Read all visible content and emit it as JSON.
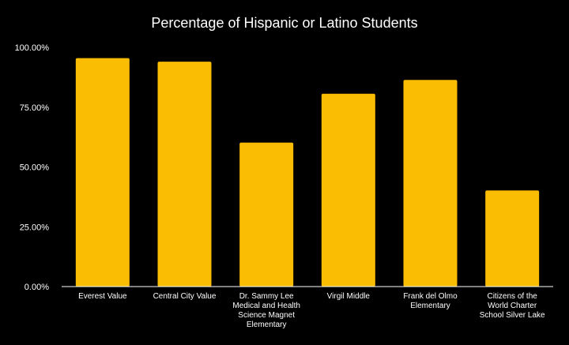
{
  "chart_data": {
    "type": "bar",
    "title": "Percentage of Hispanic or Latino Students",
    "xlabel": "",
    "ylabel": "",
    "ylim": [
      0,
      100
    ],
    "yticks": [
      0,
      25,
      50,
      75,
      100
    ],
    "ytick_labels": [
      "0.00%",
      "25.00%",
      "50.00%",
      "75.00%",
      "100.00%"
    ],
    "grid": false,
    "legend": "none",
    "categories": [
      "Everest Value",
      "Central City Value",
      "Dr. Sammy Lee Medical and Health Science Magnet Elementary",
      "Virgil Middle",
      "Frank del Olmo Elementary",
      "Citizens of the World Charter School Silver Lake"
    ],
    "category_label_lines": [
      [
        "Everest Value"
      ],
      [
        "Central City Value"
      ],
      [
        "Dr. Sammy Lee",
        "Medical and Health",
        "Science Magnet",
        "Elementary"
      ],
      [
        "Virgil Middle"
      ],
      [
        "Frank del Olmo",
        "Elementary"
      ],
      [
        "Citizens of the",
        "World Charter",
        "School Silver Lake"
      ]
    ],
    "series": [
      {
        "name": "Percentage of Hispanic or Latino Students",
        "values": [
          95.5,
          94,
          60.2,
          80.6,
          86.4,
          40.2
        ]
      }
    ],
    "colors": {
      "background": "#000000",
      "bar": "#fbbc04",
      "text": "#ffffff",
      "axis": "#ffffff"
    }
  }
}
